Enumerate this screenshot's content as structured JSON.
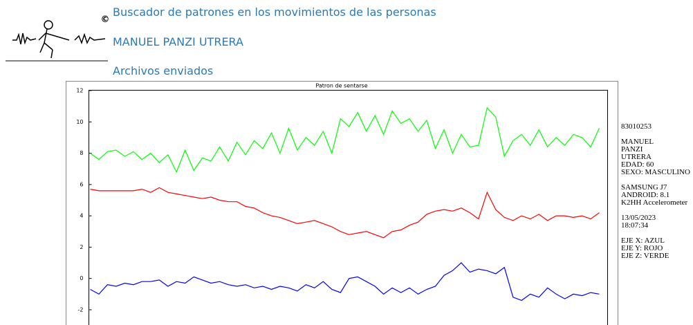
{
  "header": {
    "title": "Buscador de patrones en los movimientos de las personas",
    "user": "MANUEL PANZI UTRERA",
    "section": "Archivos enviados"
  },
  "info": [
    [
      "83010253"
    ],
    [
      "MANUEL",
      "PANZI",
      "UTRERA",
      "EDAD: 60",
      "SEXO: MASCULINO"
    ],
    [
      "SAMSUNG J7",
      "ANDROID: 8.1",
      "K2HH Accelerometer"
    ],
    [
      "13/05/2023",
      "18:07:34"
    ],
    [
      "EJE X: AZUL",
      "EJE Y: ROJO",
      "EJE Z: VERDE"
    ]
  ],
  "chart_data": {
    "type": "line",
    "title": "Patron de sentarse",
    "ylim": [
      -3,
      12
    ],
    "yticks": [
      -2,
      0,
      2,
      4,
      6,
      8,
      10,
      12
    ],
    "series": [
      {
        "color": "#0000ff",
        "values": [
          -0.7,
          -1.0,
          -0.4,
          -0.5,
          -0.3,
          -0.4,
          -0.2,
          -0.2,
          -0.1,
          -0.5,
          -0.2,
          -0.3,
          0.1,
          -0.1,
          -0.3,
          -0.2,
          -0.4,
          -0.5,
          -0.4,
          -0.6,
          -0.5,
          -0.7,
          -0.5,
          -0.6,
          -0.8,
          -0.4,
          -0.6,
          -0.2,
          -0.7,
          -0.9,
          0.0,
          0.1,
          -0.2,
          -0.5,
          -1.0,
          -0.6,
          -0.9,
          -0.6,
          -1.0,
          -0.7,
          -0.5,
          0.2,
          0.5,
          1.0,
          0.4,
          0.6,
          0.5,
          0.3,
          0.7,
          -1.2,
          -1.4,
          -1.0,
          -1.2,
          -0.6,
          -1.0,
          -1.3,
          -1.0,
          -1.1,
          -0.9,
          -1.0
        ]
      },
      {
        "color": "#ff0000",
        "values": [
          5.7,
          5.6,
          5.6,
          5.6,
          5.6,
          5.6,
          5.7,
          5.5,
          5.8,
          5.5,
          5.4,
          5.3,
          5.2,
          5.1,
          5.2,
          5.0,
          4.9,
          4.9,
          4.6,
          4.5,
          4.2,
          4.0,
          3.9,
          3.7,
          3.5,
          3.6,
          3.7,
          3.5,
          3.3,
          3.0,
          2.8,
          2.9,
          3.0,
          2.8,
          2.6,
          3.0,
          3.1,
          3.4,
          3.6,
          4.1,
          4.3,
          4.4,
          4.3,
          4.5,
          4.2,
          3.8,
          5.5,
          4.4,
          3.9,
          3.7,
          4.0,
          3.8,
          4.1,
          3.7,
          4.0,
          4.0,
          3.9,
          4.0,
          3.8,
          4.2
        ]
      },
      {
        "color": "#00ff00",
        "values": [
          8.0,
          7.6,
          8.1,
          8.2,
          7.8,
          8.1,
          7.6,
          8.0,
          7.4,
          7.9,
          6.8,
          8.2,
          6.9,
          7.7,
          7.5,
          8.4,
          7.5,
          8.7,
          7.9,
          8.8,
          8.3,
          9.3,
          8.0,
          9.6,
          8.2,
          9.0,
          8.5,
          9.4,
          8.0,
          10.2,
          9.7,
          10.6,
          9.4,
          10.4,
          9.2,
          10.7,
          9.9,
          10.2,
          9.4,
          10.1,
          8.3,
          9.5,
          8.0,
          9.2,
          8.4,
          8.5,
          10.9,
          10.3,
          7.8,
          8.8,
          9.2,
          8.5,
          9.5,
          8.4,
          9.0,
          8.5,
          9.2,
          9.0,
          8.4,
          9.6
        ]
      }
    ]
  }
}
